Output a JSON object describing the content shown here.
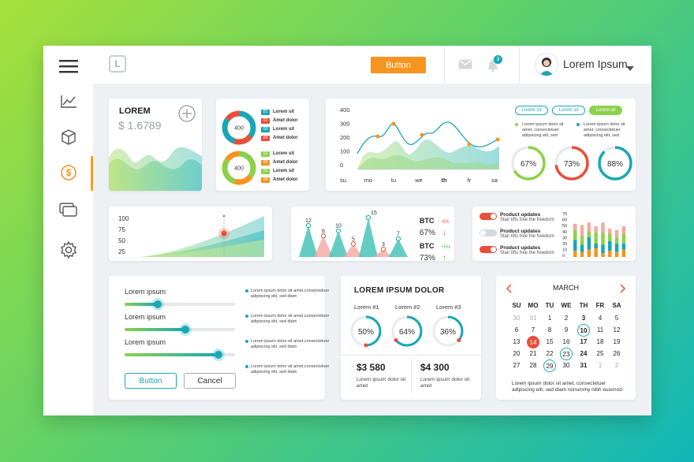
{
  "header": {
    "logo_letter": "L",
    "button_label": "Button",
    "notification_count": "3",
    "user_name": "Lorem Ipsum"
  },
  "colors": {
    "accent_orange": "#f7941d",
    "teal": "#1aa6b5",
    "green": "#8cd14a",
    "red": "#e94e3b"
  },
  "sidebar": {
    "items": [
      {
        "icon": "menu-icon"
      },
      {
        "icon": "line-chart-icon"
      },
      {
        "icon": "box-icon"
      },
      {
        "icon": "dollar-icon",
        "active": true
      },
      {
        "icon": "cards-icon"
      },
      {
        "icon": "gear-icon"
      }
    ]
  },
  "balance_card": {
    "title": "LOREM",
    "value": "$ 1.6789"
  },
  "donut_card": {
    "donuts": [
      {
        "center": "400",
        "legend": [
          {
            "num": "01",
            "label": "Lorem sit",
            "color": "#1aa6b5"
          },
          {
            "num": "02",
            "label": "Amet dolor",
            "color": "#e94e3b"
          },
          {
            "num": "03",
            "label": "Lorem sit",
            "color": "#1aa6b5"
          },
          {
            "num": "04",
            "label": "Amet dolor",
            "color": "#e94e3b"
          }
        ]
      },
      {
        "center": "400",
        "legend": [
          {
            "num": "01",
            "label": "Lorem sit",
            "color": "#8cd14a"
          },
          {
            "num": "02",
            "label": "Amet dolor",
            "color": "#f7941d"
          },
          {
            "num": "03",
            "label": "Lorem sit",
            "color": "#8cd14a"
          },
          {
            "num": "04",
            "label": "Amet dolor",
            "color": "#f7941d"
          }
        ]
      }
    ]
  },
  "area_chart_card": {
    "y_ticks": [
      "400",
      "300",
      "200",
      "100",
      "0"
    ],
    "x_ticks": [
      "su",
      "mo",
      "tu",
      "we",
      "th",
      "fr",
      "sa"
    ],
    "pills": [
      "Lorem sit",
      "Lorem sit",
      "Lorem sit"
    ],
    "notes": [
      "Lorem ipsum dolor sit amet, consectetuer adipiscing elit, sed",
      "Lorem ipsum dolor sit amet, consectetuer adipiscing elit, sed"
    ],
    "rings": [
      {
        "label": "67%",
        "value": 67,
        "color": "#8cd14a"
      },
      {
        "label": "73%",
        "value": 73,
        "color": "#e94e3b"
      },
      {
        "label": "88%",
        "value": 88,
        "color": "#1aa6b5"
      }
    ]
  },
  "growth_card": {
    "y_ticks": [
      "100",
      "75",
      "50",
      "25"
    ]
  },
  "peaks_card": {
    "labels": [
      "12",
      "8",
      "10",
      "5",
      "15",
      "3",
      "7"
    ],
    "btc": [
      {
        "title": "BTC",
        "change": "-5%",
        "value": "67%",
        "dir": "down"
      },
      {
        "title": "BTC",
        "change": "+5%",
        "value": "73%",
        "dir": "up"
      }
    ]
  },
  "toggles_card": {
    "items": [
      {
        "title": "Product updates",
        "sub": "Stair lifts free the freedom",
        "on": true
      },
      {
        "title": "Product updates",
        "sub": "Stair lifts free the freedom",
        "on": false
      },
      {
        "title": "Product updates",
        "sub": "Stair lifts free the freedom",
        "on": true
      }
    ],
    "y_ticks": [
      "70",
      "60",
      "50",
      "40",
      "30",
      "20",
      "10",
      "0"
    ]
  },
  "sliders_card": {
    "sliders": [
      {
        "label": "Lorem ipsum",
        "value": 0.3
      },
      {
        "label": "Lorem ipsum",
        "value": 0.55
      },
      {
        "label": "Lorem ipsum",
        "value": 0.85
      }
    ],
    "button_label": "Button",
    "cancel_label": "Cancel",
    "bullets": [
      "Lorem ipsum dolor sit amet,consectetuer adipiscing elit, sed diam",
      "Lorem ipsum dolor sit amet,consectetuer adipiscing elit, sed diam",
      "Lorem ipsum dolor sit amet,consectetuer adipiscing elit, sed diam",
      "Lorem ipsum dolor sit amet,consectetuer adipiscing elit, sed diam"
    ]
  },
  "lorem_dolor_card": {
    "title": "LOREM IPSUM DOLOR",
    "gauges": [
      {
        "label": "Lorem #1",
        "value": "50%",
        "pct": 50
      },
      {
        "label": "Lorem #2",
        "value": "64%",
        "pct": 64
      },
      {
        "label": "Lorem #3",
        "value": "36%",
        "pct": 36
      }
    ],
    "amounts": [
      {
        "value": "$3 580",
        "desc": "Lorem ipsum dolor sit amet"
      },
      {
        "value": "$4 300",
        "desc": "Lorem ipsum dolor sit amet"
      }
    ]
  },
  "calendar": {
    "month": "MARCH",
    "weekdays": [
      "SU",
      "MO",
      "TU",
      "WE",
      "TH",
      "FR",
      "SA"
    ],
    "rows": [
      [
        "30",
        "31",
        "1",
        "2",
        "3",
        "4",
        "5"
      ],
      [
        "6",
        "7",
        "8",
        "9",
        "10",
        "11",
        "12"
      ],
      [
        "13",
        "14",
        "15",
        "16",
        "17",
        "18",
        "19"
      ],
      [
        "20",
        "21",
        "22",
        "23",
        "24",
        "25",
        "26"
      ],
      [
        "27",
        "28",
        "29",
        "30",
        "31",
        "1",
        "2"
      ]
    ],
    "footer": "Lorem ipsum dolor sit amet, consectetuer adipiscing elit, sed diam nonummy nibh euismod"
  }
}
